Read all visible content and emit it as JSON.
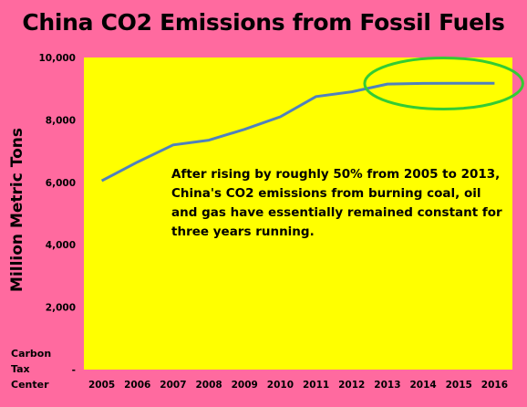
{
  "chart_data": {
    "type": "line",
    "title": "China CO2 Emissions from Fossil Fuels",
    "xlabel": "",
    "ylabel": "Million Metric Tons",
    "categories": [
      "2005",
      "2006",
      "2007",
      "2008",
      "2009",
      "2010",
      "2011",
      "2012",
      "2013",
      "2014",
      "2015",
      "2016"
    ],
    "series": [
      {
        "values": [
          6050,
          6650,
          7200,
          7350,
          7700,
          8100,
          8750,
          8900,
          9150,
          9170,
          9175,
          9175
        ]
      }
    ],
    "ylim": [
      0,
      10000
    ],
    "yticks": [
      "-",
      "2,000",
      "4,000",
      "6,000",
      "8,000",
      "10,000"
    ],
    "grid": false,
    "annotation": "After rising by roughly 50% from 2005 to 2013, China's CO2 emissions from burning coal, oil and gas have essentially remained constant for three years running.",
    "source": "Carbon Tax Center",
    "colors": {
      "background": "#FF6A9F",
      "plot_area": "#FFFF00",
      "line": "#4F81BD",
      "highlight": "#33CC33"
    }
  }
}
